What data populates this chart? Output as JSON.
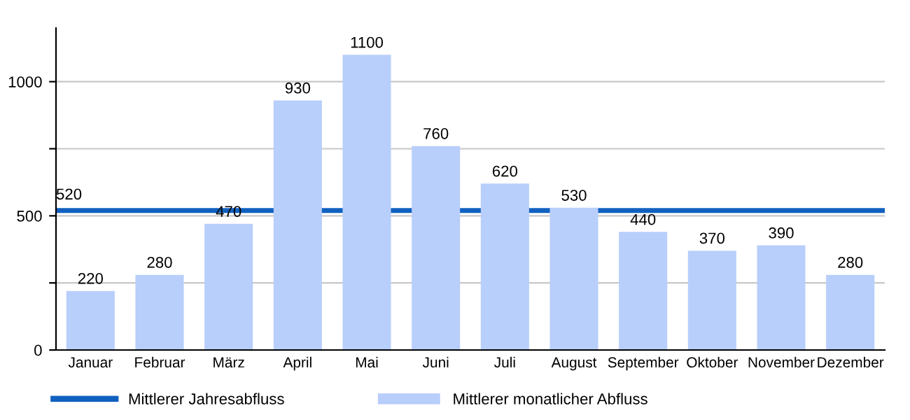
{
  "chart_data": {
    "type": "bar",
    "categories": [
      "Januar",
      "Februar",
      "März",
      "April",
      "Mai",
      "Juni",
      "Juli",
      "August",
      "September",
      "Oktober",
      "November",
      "Dezember"
    ],
    "series": [
      {
        "name": "Mittlerer monatlicher Abfluss",
        "color": "#b8cefb",
        "values": [
          220,
          280,
          470,
          930,
          1100,
          760,
          620,
          530,
          440,
          370,
          390,
          280
        ]
      }
    ],
    "ref_lines": [
      {
        "axis": "y",
        "value": 520,
        "label": "Mittlerer Jahresabfluss",
        "color": "#1060c0"
      }
    ],
    "annotations": [
      {
        "text": "520",
        "y": 520
      }
    ],
    "data_labels": true,
    "ylim": [
      0,
      1200
    ],
    "yticks": [
      0,
      {
        "value": 250,
        "label": null
      },
      500,
      {
        "value": 750,
        "label": null
      },
      1000
    ],
    "grid": "y",
    "legend": "bottom"
  }
}
